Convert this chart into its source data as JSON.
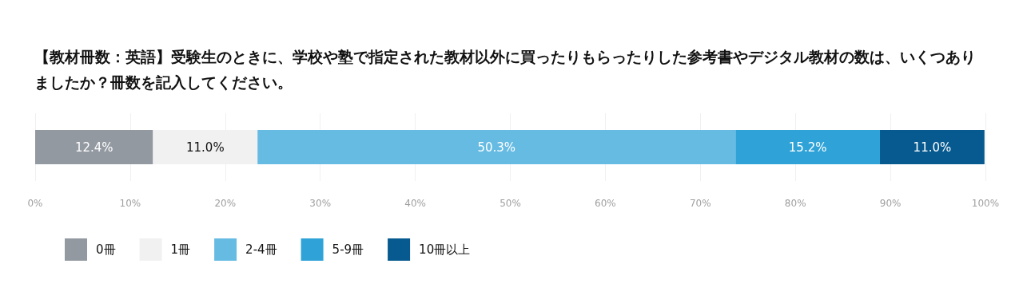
{
  "chart_data": {
    "type": "bar",
    "orientation": "horizontal",
    "stacked": true,
    "title": "【教材冊数：英語】受験生のときに、学校や塾で指定された教材以外に買ったりもらったりした参考書やデジタル教材の数は、いくつありましたか？冊数を記入してください。",
    "categories": [
      null
    ],
    "series": [
      {
        "name": "0冊",
        "color": "#9399a1",
        "values": [
          12.4
        ],
        "value_labels": [
          "12.4%"
        ]
      },
      {
        "name": "1冊",
        "color": "#f1f1f1",
        "values": [
          11.0
        ],
        "value_labels": [
          "11.0%"
        ]
      },
      {
        "name": "2-4冊",
        "color": "#66bbe3",
        "values": [
          50.3
        ],
        "value_labels": [
          "50.3%"
        ]
      },
      {
        "name": "5-9冊",
        "color": "#2fa3d8",
        "values": [
          15.2
        ],
        "value_labels": [
          "15.2%"
        ]
      },
      {
        "name": "10冊以上",
        "color": "#065a8f",
        "values": [
          11.0
        ],
        "value_labels": [
          "11.0%"
        ]
      }
    ],
    "xlim": [
      0,
      100
    ],
    "xticks": [
      {
        "value": 0,
        "label": "0%"
      },
      {
        "value": 10,
        "label": "10%"
      },
      {
        "value": 20,
        "label": "20%"
      },
      {
        "value": 30,
        "label": "30%"
      },
      {
        "value": 40,
        "label": "40%"
      },
      {
        "value": 50,
        "label": "50%"
      },
      {
        "value": 60,
        "label": "60%"
      },
      {
        "value": 70,
        "label": "70%"
      },
      {
        "value": 80,
        "label": "80%"
      },
      {
        "value": 90,
        "label": "90%"
      },
      {
        "value": 100,
        "label": "100%"
      }
    ],
    "grid": "x",
    "legend": "bottom left"
  }
}
